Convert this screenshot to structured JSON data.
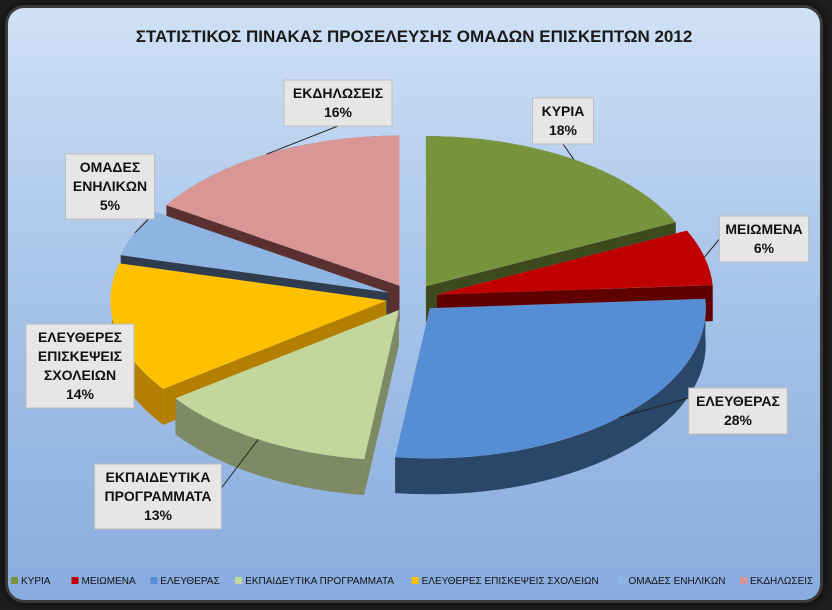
{
  "chart_data": {
    "type": "pie",
    "title": "ΣΤΑΤΙΣΤΙΚΟΣ ΠΙΝΑΚΑΣ ΠΡΟΣΕΛΕΥΣΗΣ ΟΜΑΔΩΝ ΕΠΙΣΚΕΠΤΩΝ 2012",
    "three_d": true,
    "exploded": true,
    "legend_position": "bottom",
    "slices": [
      {
        "category": "ΚΥΡΙΑ",
        "value": 18,
        "label": "18%",
        "color": "#77933c",
        "dark": "#3c4a1e"
      },
      {
        "category": "ΜΕΙΩΜΕΝΑ",
        "value": 6,
        "label": "6%",
        "color": "#c00000",
        "dark": "#600000"
      },
      {
        "category": "ΕΛΕΥΘΕΡΑΣ",
        "value": 28,
        "label": "28%",
        "color": "#558ed5",
        "dark": "#2a476a"
      },
      {
        "category": "ΕΚΠΑΙΔΕΥΤΙΚΑ ΠΡΟΓΡΑΜΜΑΤΑ",
        "value": 13,
        "label": "13%",
        "color": "#c3d69b",
        "dark": "#7d8a63"
      },
      {
        "category": "ΕΛΕΥΘΕΡΕΣ ΕΠΙΣΚΕΨΕΙΣ ΣΧΟΛΕΙΩΝ",
        "value": 14,
        "label": "14%",
        "color": "#ffc000",
        "dark": "#b37f00"
      },
      {
        "category": "ΟΜΑΔΕΣ ΕΝΗΛΙΚΩΝ",
        "value": 5,
        "label": "5%",
        "color": "#8eb4e3",
        "dark": "#2f3c4d"
      },
      {
        "category": "ΕΚΔΗΛΩΣΕΙΣ",
        "value": 16,
        "label": "16%",
        "color": "#d99694",
        "dark": "#5a3030"
      }
    ],
    "data_label_lines": [
      [
        "ΚΥΡΙΑ",
        "18%"
      ],
      [
        "ΜΕΙΩΜΕΝΑ",
        "6%"
      ],
      [
        "ΕΛΕΥΘΕΡΑΣ",
        "28%"
      ],
      [
        "ΕΚΠΑΙΔΕΥΤΙΚΑ",
        "ΠΡΟΓΡΑΜΜΑΤΑ",
        "13%"
      ],
      [
        "ΕΛΕΥΘΕΡΕΣ",
        "ΕΠΙΣΚΕΨΕΙΣ",
        "ΣΧΟΛΕΙΩΝ",
        "14%"
      ],
      [
        "ΟΜΑΔΕΣ",
        "ΕΝΗΛΙΚΩΝ",
        "5%"
      ],
      [
        "ΕΚΔΗΛΩΣΕΙΣ",
        "16%"
      ]
    ]
  }
}
